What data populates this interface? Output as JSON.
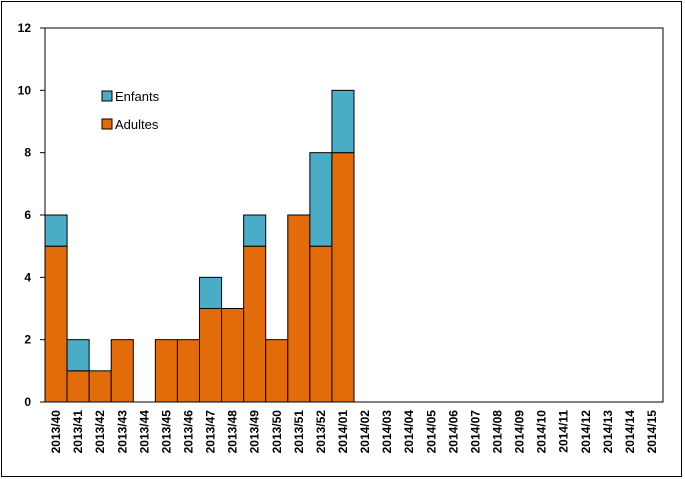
{
  "chart_data": {
    "type": "bar",
    "stacked": true,
    "categories": [
      "2013/40",
      "2013/41",
      "2013/42",
      "2013/43",
      "2013/44",
      "2013/45",
      "2013/46",
      "2013/47",
      "2013/48",
      "2013/49",
      "2013/50",
      "2013/51",
      "2013/52",
      "2014/01",
      "2014/02",
      "2014/03",
      "2014/04",
      "2014/05",
      "2014/06",
      "2014/07",
      "2014/08",
      "2014/09",
      "2014/10",
      "2014/11",
      "2014/12",
      "2014/13",
      "2014/14",
      "2014/15"
    ],
    "series": [
      {
        "name": "Adultes",
        "color": "#E36C0A",
        "values": [
          5,
          1,
          1,
          2,
          0,
          2,
          2,
          3,
          3,
          5,
          2,
          6,
          5,
          8,
          0,
          0,
          0,
          0,
          0,
          0,
          0,
          0,
          0,
          0,
          0,
          0,
          0,
          0
        ]
      },
      {
        "name": "Enfants",
        "color": "#4BACC6",
        "values": [
          1,
          1,
          0,
          0,
          0,
          0,
          0,
          1,
          0,
          1,
          0,
          0,
          3,
          2,
          0,
          0,
          0,
          0,
          0,
          0,
          0,
          0,
          0,
          0,
          0,
          0,
          0,
          0
        ]
      }
    ],
    "ylim": [
      0,
      12
    ],
    "yticks": [
      0,
      2,
      4,
      6,
      8,
      10,
      12
    ],
    "grid": false,
    "legend_position": "top-left",
    "title": "",
    "xlabel": "",
    "ylabel": ""
  }
}
